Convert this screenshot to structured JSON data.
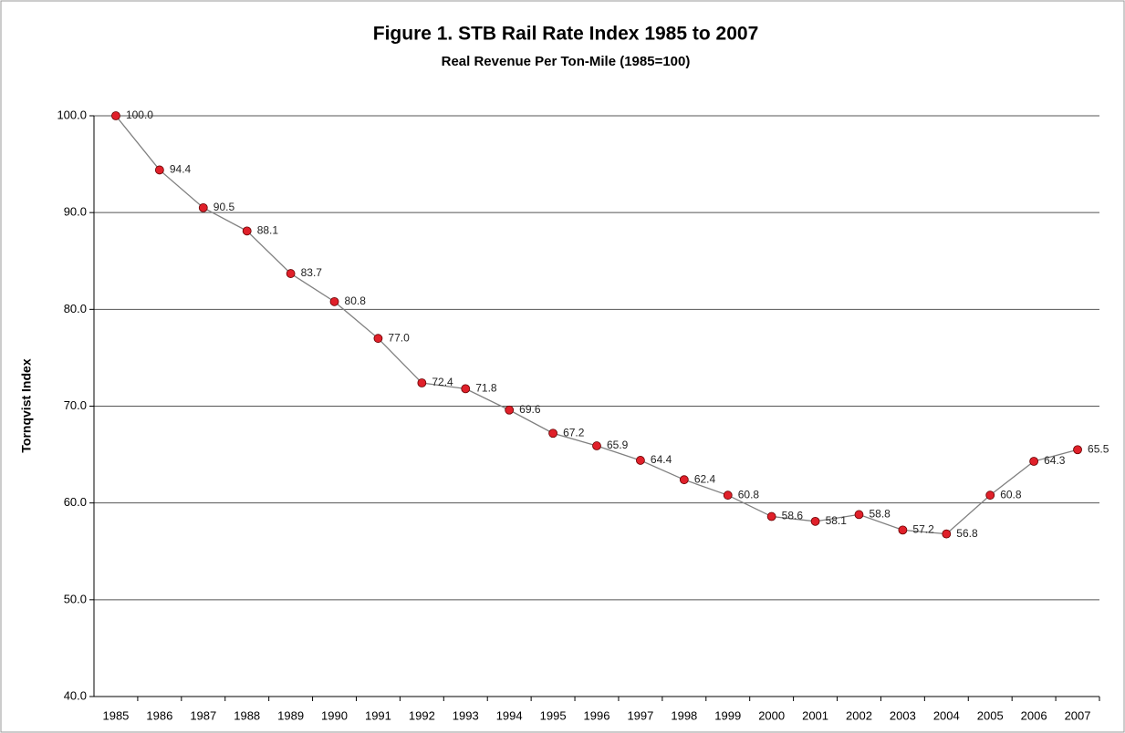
{
  "chart_data": {
    "type": "line",
    "title": "Figure 1.  STB Rail Rate Index 1985 to 2007",
    "subtitle": "Real Revenue Per Ton-Mile (1985=100)",
    "y_label": "Tornqvist Index",
    "categories": [
      "1985",
      "1986",
      "1987",
      "1988",
      "1989",
      "1990",
      "1991",
      "1992",
      "1993",
      "1994",
      "1995",
      "1996",
      "1997",
      "1998",
      "1999",
      "2000",
      "2001",
      "2002",
      "2003",
      "2004",
      "2005",
      "2006",
      "2007"
    ],
    "values": [
      100.0,
      94.4,
      90.5,
      88.1,
      83.7,
      80.8,
      77.0,
      72.4,
      71.8,
      69.6,
      67.2,
      65.9,
      64.4,
      62.4,
      60.8,
      58.6,
      58.1,
      58.8,
      57.2,
      56.8,
      60.8,
      64.3,
      65.5
    ],
    "value_labels": [
      "100.0",
      "94.4",
      "90.5",
      "88.1",
      "83.7",
      "80.8",
      "77.0",
      "72.4",
      "71.8",
      "69.6",
      "67.2",
      "65.9",
      "64.4",
      "62.4",
      "60.8",
      "58.6",
      "58.1",
      "58.8",
      "57.2",
      "56.8",
      "60.8",
      "64.3",
      "65.5"
    ],
    "line_color": "#808080",
    "marker_color": "#e0202a",
    "ylim": [
      40,
      100
    ],
    "yticks": [
      {
        "value": 40,
        "label": "40.0"
      },
      {
        "value": 50,
        "label": "50.0"
      },
      {
        "value": 60,
        "label": "60.0"
      },
      {
        "value": 70,
        "label": "70.0"
      },
      {
        "value": 80,
        "label": "80.0"
      },
      {
        "value": 90,
        "label": "90.0"
      },
      {
        "value": 100,
        "label": "100.0"
      }
    ],
    "grid": true
  }
}
